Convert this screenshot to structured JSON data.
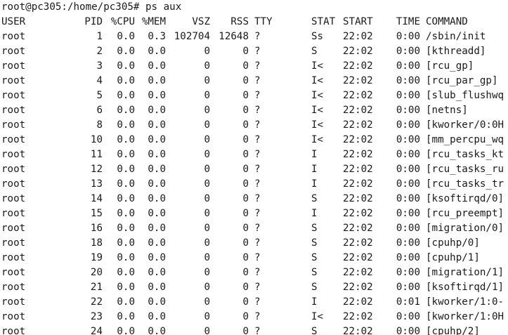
{
  "prompt": "root@pc305:/home/pc305# ps aux",
  "headers": {
    "user": "USER",
    "pid": "PID",
    "cpu": "%CPU",
    "mem": "%MEM",
    "vsz": "VSZ",
    "rss": "RSS",
    "tty": "TTY",
    "stat": "STAT",
    "start": "START",
    "time": "TIME",
    "command": "COMMAND"
  },
  "rows": [
    {
      "user": "root",
      "pid": "1",
      "cpu": "0.0",
      "mem": "0.3",
      "vsz": "102704",
      "rss": "12648",
      "tty": "?",
      "stat": "Ss",
      "start": "22:02",
      "time": "0:00",
      "command": "/sbin/init"
    },
    {
      "user": "root",
      "pid": "2",
      "cpu": "0.0",
      "mem": "0.0",
      "vsz": "0",
      "rss": "0",
      "tty": "?",
      "stat": "S",
      "start": "22:02",
      "time": "0:00",
      "command": "[kthreadd]"
    },
    {
      "user": "root",
      "pid": "3",
      "cpu": "0.0",
      "mem": "0.0",
      "vsz": "0",
      "rss": "0",
      "tty": "?",
      "stat": "I<",
      "start": "22:02",
      "time": "0:00",
      "command": "[rcu_gp]"
    },
    {
      "user": "root",
      "pid": "4",
      "cpu": "0.0",
      "mem": "0.0",
      "vsz": "0",
      "rss": "0",
      "tty": "?",
      "stat": "I<",
      "start": "22:02",
      "time": "0:00",
      "command": "[rcu_par_gp]"
    },
    {
      "user": "root",
      "pid": "5",
      "cpu": "0.0",
      "mem": "0.0",
      "vsz": "0",
      "rss": "0",
      "tty": "?",
      "stat": "I<",
      "start": "22:02",
      "time": "0:00",
      "command": "[slub_flushwq"
    },
    {
      "user": "root",
      "pid": "6",
      "cpu": "0.0",
      "mem": "0.0",
      "vsz": "0",
      "rss": "0",
      "tty": "?",
      "stat": "I<",
      "start": "22:02",
      "time": "0:00",
      "command": "[netns]"
    },
    {
      "user": "root",
      "pid": "8",
      "cpu": "0.0",
      "mem": "0.0",
      "vsz": "0",
      "rss": "0",
      "tty": "?",
      "stat": "I<",
      "start": "22:02",
      "time": "0:00",
      "command": "[kworker/0:0H"
    },
    {
      "user": "root",
      "pid": "10",
      "cpu": "0.0",
      "mem": "0.0",
      "vsz": "0",
      "rss": "0",
      "tty": "?",
      "stat": "I<",
      "start": "22:02",
      "time": "0:00",
      "command": "[mm_percpu_wq"
    },
    {
      "user": "root",
      "pid": "11",
      "cpu": "0.0",
      "mem": "0.0",
      "vsz": "0",
      "rss": "0",
      "tty": "?",
      "stat": "I",
      "start": "22:02",
      "time": "0:00",
      "command": "[rcu_tasks_kt"
    },
    {
      "user": "root",
      "pid": "12",
      "cpu": "0.0",
      "mem": "0.0",
      "vsz": "0",
      "rss": "0",
      "tty": "?",
      "stat": "I",
      "start": "22:02",
      "time": "0:00",
      "command": "[rcu_tasks_ru"
    },
    {
      "user": "root",
      "pid": "13",
      "cpu": "0.0",
      "mem": "0.0",
      "vsz": "0",
      "rss": "0",
      "tty": "?",
      "stat": "I",
      "start": "22:02",
      "time": "0:00",
      "command": "[rcu_tasks_tr"
    },
    {
      "user": "root",
      "pid": "14",
      "cpu": "0.0",
      "mem": "0.0",
      "vsz": "0",
      "rss": "0",
      "tty": "?",
      "stat": "S",
      "start": "22:02",
      "time": "0:00",
      "command": "[ksoftirqd/0]"
    },
    {
      "user": "root",
      "pid": "15",
      "cpu": "0.0",
      "mem": "0.0",
      "vsz": "0",
      "rss": "0",
      "tty": "?",
      "stat": "I",
      "start": "22:02",
      "time": "0:00",
      "command": "[rcu_preempt]"
    },
    {
      "user": "root",
      "pid": "16",
      "cpu": "0.0",
      "mem": "0.0",
      "vsz": "0",
      "rss": "0",
      "tty": "?",
      "stat": "S",
      "start": "22:02",
      "time": "0:00",
      "command": "[migration/0]"
    },
    {
      "user": "root",
      "pid": "18",
      "cpu": "0.0",
      "mem": "0.0",
      "vsz": "0",
      "rss": "0",
      "tty": "?",
      "stat": "S",
      "start": "22:02",
      "time": "0:00",
      "command": "[cpuhp/0]"
    },
    {
      "user": "root",
      "pid": "19",
      "cpu": "0.0",
      "mem": "0.0",
      "vsz": "0",
      "rss": "0",
      "tty": "?",
      "stat": "S",
      "start": "22:02",
      "time": "0:00",
      "command": "[cpuhp/1]"
    },
    {
      "user": "root",
      "pid": "20",
      "cpu": "0.0",
      "mem": "0.0",
      "vsz": "0",
      "rss": "0",
      "tty": "?",
      "stat": "S",
      "start": "22:02",
      "time": "0:00",
      "command": "[migration/1]"
    },
    {
      "user": "root",
      "pid": "21",
      "cpu": "0.0",
      "mem": "0.0",
      "vsz": "0",
      "rss": "0",
      "tty": "?",
      "stat": "S",
      "start": "22:02",
      "time": "0:00",
      "command": "[ksoftirqd/1]"
    },
    {
      "user": "root",
      "pid": "22",
      "cpu": "0.0",
      "mem": "0.0",
      "vsz": "0",
      "rss": "0",
      "tty": "?",
      "stat": "I",
      "start": "22:02",
      "time": "0:01",
      "command": "[kworker/1:0-"
    },
    {
      "user": "root",
      "pid": "23",
      "cpu": "0.0",
      "mem": "0.0",
      "vsz": "0",
      "rss": "0",
      "tty": "?",
      "stat": "I<",
      "start": "22:02",
      "time": "0:00",
      "command": "[kworker/1:0H"
    },
    {
      "user": "root",
      "pid": "24",
      "cpu": "0.0",
      "mem": "0.0",
      "vsz": "0",
      "rss": "0",
      "tty": "?",
      "stat": "S",
      "start": "22:02",
      "time": "0:00",
      "command": "[cpuhp/2]"
    }
  ]
}
